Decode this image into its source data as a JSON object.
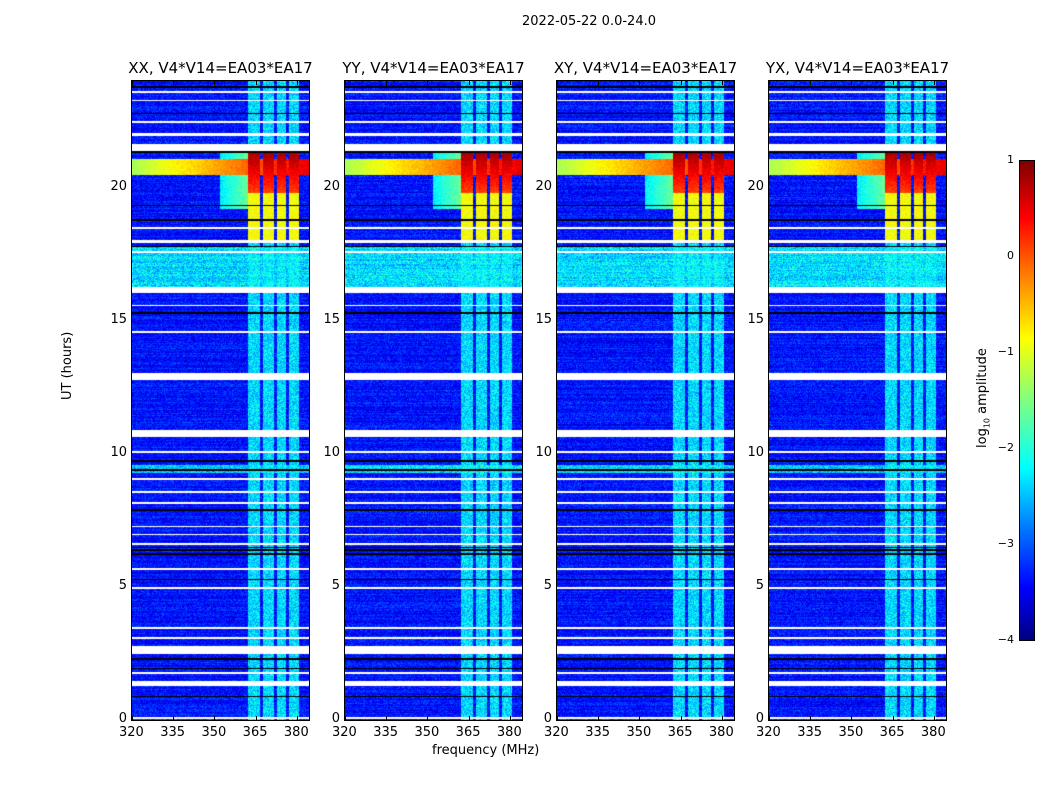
{
  "chart_data": {
    "type": "heatmap",
    "title": "2022-05-22 0.0-24.0",
    "xlabel": "frequency (MHz)",
    "ylabel": "UT (hours)",
    "xlim": [
      320,
      384.4
    ],
    "ylim": [
      0,
      24
    ],
    "xticks": [
      320,
      335,
      350,
      365,
      380
    ],
    "yticks": [
      0,
      5,
      10,
      15,
      20
    ],
    "panels": [
      {
        "title": "XX, V4*V14=EA03*EA17"
      },
      {
        "title": "YY, V4*V14=EA03*EA17"
      },
      {
        "title": "XY, V4*V14=EA03*EA17"
      },
      {
        "title": "YX, V4*V14=EA03*EA17"
      }
    ],
    "colorbar": {
      "label_prefix": "log",
      "label_sub": "10",
      "label_suffix": " amplitude",
      "colormap": "jet",
      "range": [
        -4,
        1
      ],
      "ticks": [
        -4,
        -3,
        -2,
        -1,
        0,
        1
      ],
      "tick_labels": [
        "−4",
        "−3",
        "−2",
        "−1",
        "0",
        "1"
      ]
    },
    "background_level": -3.3,
    "rfi_channels_mhz": [
      [
        362,
        366.5
      ],
      [
        367.5,
        371.5
      ],
      [
        372.5,
        376
      ],
      [
        377,
        380.5
      ]
    ],
    "rfi_level": -2.3,
    "strong_rfi_hours": [
      19.8,
      21.3
    ],
    "strong_rfi_level": 0.8,
    "broadband_rfi_hours": [
      20.5,
      21.1
    ],
    "noisy_band_hours": [
      [
        16.3,
        17.8
      ],
      [
        9.3,
        9.6
      ]
    ],
    "flagged_hours": [
      [
        23.55,
        23.65
      ],
      [
        23.25,
        23.32
      ],
      [
        22.45,
        22.52
      ],
      [
        21.95,
        22.05
      ],
      [
        21.4,
        21.65
      ],
      [
        18.45,
        18.55
      ],
      [
        17.95,
        18.05
      ],
      [
        17.55,
        17.62
      ],
      [
        16.05,
        16.3
      ],
      [
        15.55,
        15.62
      ],
      [
        14.55,
        14.62
      ],
      [
        12.8,
        13.05
      ],
      [
        10.65,
        10.9
      ],
      [
        10.05,
        10.12
      ],
      [
        9.05,
        9.12
      ],
      [
        8.55,
        8.62
      ],
      [
        8.15,
        8.22
      ],
      [
        7.25,
        7.32
      ],
      [
        6.95,
        7.02
      ],
      [
        6.6,
        6.67
      ],
      [
        5.65,
        5.72
      ],
      [
        4.95,
        5.02
      ],
      [
        3.45,
        3.52
      ],
      [
        3.05,
        3.12
      ],
      [
        2.5,
        2.8
      ],
      [
        1.75,
        1.82
      ],
      [
        1.3,
        1.5
      ],
      [
        0.05,
        0.12
      ]
    ],
    "black_lines_hours": [
      23.8,
      22.8,
      21.35,
      19.35,
      18.8,
      17.8,
      15.3,
      9.75,
      9.4,
      7.9,
      6.5,
      6.4,
      6.25,
      5.3,
      2.3,
      1.95,
      0.9
    ]
  }
}
